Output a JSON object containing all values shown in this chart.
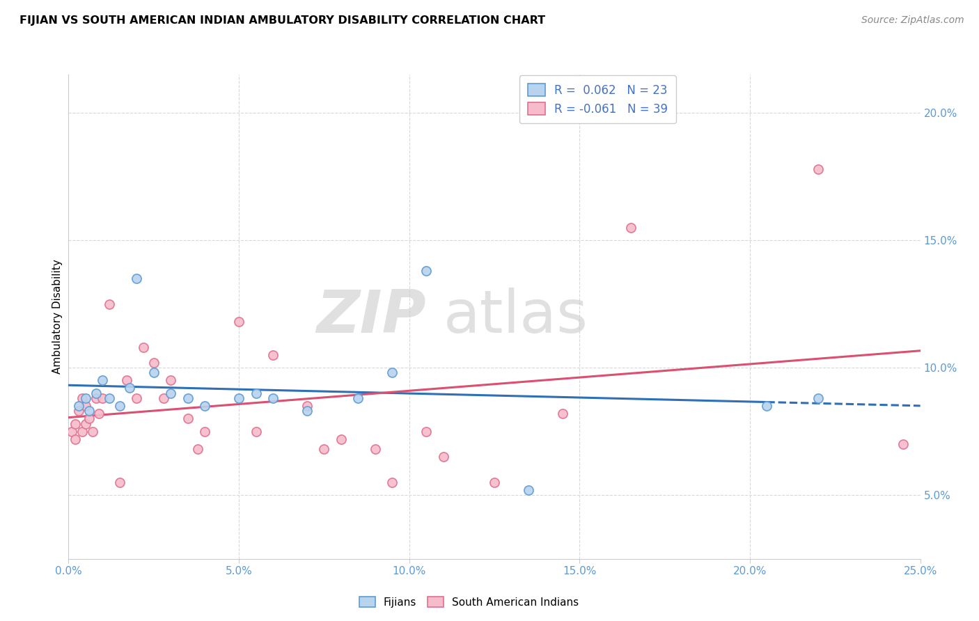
{
  "title": "FIJIAN VS SOUTH AMERICAN INDIAN AMBULATORY DISABILITY CORRELATION CHART",
  "source": "Source: ZipAtlas.com",
  "ylabel": "Ambulatory Disability",
  "ylabel_right_ticks": [
    "5.0%",
    "10.0%",
    "15.0%",
    "20.0%"
  ],
  "ylabel_right_vals": [
    5.0,
    10.0,
    15.0,
    20.0
  ],
  "xmin": 0.0,
  "xmax": 25.0,
  "ymin": 2.5,
  "ymax": 21.5,
  "fijian_color": "#b8d3ed",
  "fijian_edge_color": "#5b9bd5",
  "south_american_color": "#f7bccb",
  "south_american_edge_color": "#e07090",
  "trend_fijian_color": "#2e6fb5",
  "trend_south_american_color": "#d95070",
  "R_fijian": 0.062,
  "N_fijian": 23,
  "R_south_american": -0.061,
  "N_south_american": 39,
  "watermark_zip": "ZIP",
  "watermark_atlas": "atlas",
  "fijian_x": [
    0.3,
    0.5,
    0.6,
    0.8,
    1.0,
    1.2,
    1.5,
    1.8,
    2.0,
    2.5,
    3.0,
    3.5,
    4.0,
    5.0,
    5.5,
    6.0,
    7.0,
    8.5,
    9.5,
    10.5,
    13.5,
    20.5,
    22.0
  ],
  "fijian_y": [
    8.5,
    8.8,
    8.3,
    9.0,
    9.5,
    8.8,
    8.5,
    9.2,
    13.5,
    9.8,
    9.0,
    8.8,
    8.5,
    8.8,
    9.0,
    8.8,
    8.3,
    8.8,
    9.8,
    13.8,
    5.2,
    8.5,
    8.8
  ],
  "south_american_x": [
    0.1,
    0.2,
    0.2,
    0.3,
    0.4,
    0.4,
    0.5,
    0.5,
    0.6,
    0.7,
    0.8,
    0.9,
    1.0,
    1.2,
    1.5,
    1.7,
    2.0,
    2.2,
    2.5,
    2.8,
    3.0,
    3.5,
    3.8,
    4.0,
    5.0,
    5.5,
    6.0,
    7.0,
    7.5,
    8.0,
    9.0,
    9.5,
    10.5,
    11.0,
    12.5,
    14.5,
    16.5,
    22.0,
    24.5
  ],
  "south_american_y": [
    7.5,
    7.8,
    7.2,
    8.3,
    7.5,
    8.8,
    8.5,
    7.8,
    8.0,
    7.5,
    8.8,
    8.2,
    8.8,
    12.5,
    5.5,
    9.5,
    8.8,
    10.8,
    10.2,
    8.8,
    9.5,
    8.0,
    6.8,
    7.5,
    11.8,
    7.5,
    10.5,
    8.5,
    6.8,
    7.2,
    6.8,
    5.5,
    7.5,
    6.5,
    5.5,
    8.2,
    15.5,
    17.8,
    7.0
  ],
  "marker_size": 90,
  "background_color": "#ffffff",
  "grid_color": "#d8d8d8",
  "trend_dash_start": 20.5
}
